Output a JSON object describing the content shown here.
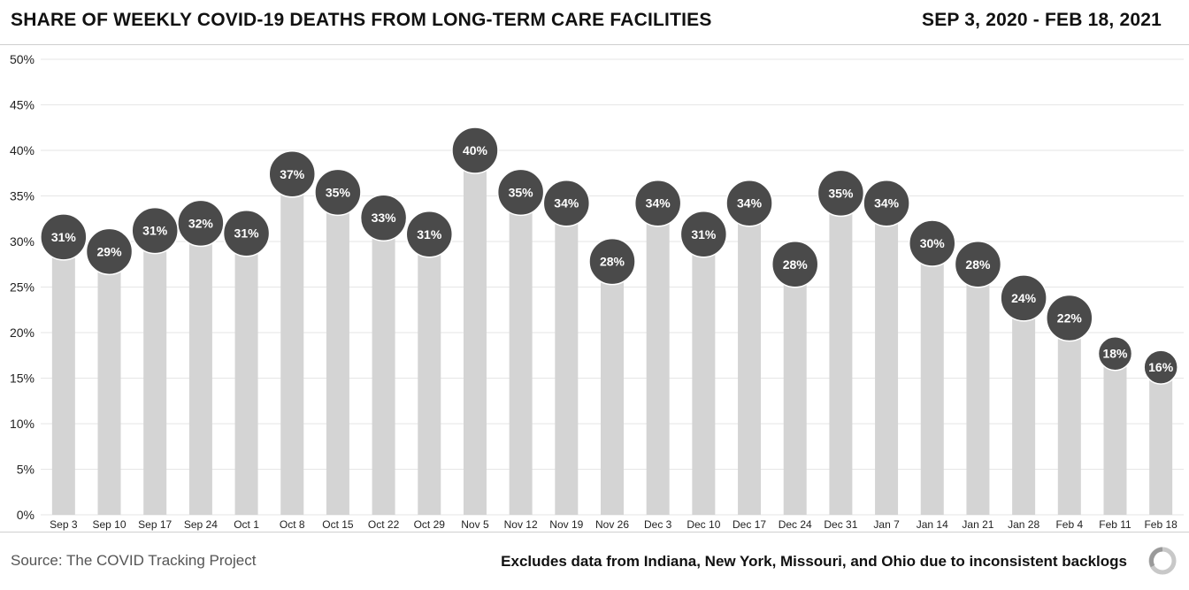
{
  "header": {
    "title": "SHARE OF WEEKLY COVID-19 DEATHS FROM LONG-TERM CARE FACILITIES",
    "date_range": "SEP 3, 2020 - FEB 18, 2021"
  },
  "footer": {
    "source": "Source: The COVID Tracking Project",
    "note": "Excludes data from Indiana, New York, Missouri, and Ohio due to inconsistent backlogs",
    "logo_icon": "covid-tracking-project-logo-icon"
  },
  "colors": {
    "bar": "#d4d4d4",
    "marker": "#4a4a4a",
    "marker_text": "#ffffff",
    "grid": "#e6e6e6"
  },
  "chart_data": {
    "type": "bar",
    "title": "SHARE OF WEEKLY COVID-19 DEATHS FROM LONG-TERM CARE FACILITIES",
    "xlabel": "",
    "ylabel": "",
    "ylim": [
      0,
      50
    ],
    "yticks": [
      0,
      5,
      10,
      15,
      20,
      25,
      30,
      35,
      40,
      45,
      50
    ],
    "ytick_labels": [
      "0%",
      "5%",
      "10%",
      "15%",
      "20%",
      "25%",
      "30%",
      "35%",
      "40%",
      "45%",
      "50%"
    ],
    "grid": true,
    "categories": [
      "Sep 3",
      "Sep 10",
      "Sep 17",
      "Sep 24",
      "Oct 1",
      "Oct 8",
      "Oct 15",
      "Oct 22",
      "Oct 29",
      "Nov 5",
      "Nov 12",
      "Nov 19",
      "Nov 26",
      "Dec 3",
      "Dec 10",
      "Dec 17",
      "Dec 24",
      "Dec 31",
      "Jan 7",
      "Jan 14",
      "Jan 21",
      "Jan 28",
      "Feb 4",
      "Feb 11",
      "Feb 18"
    ],
    "values": [
      30.5,
      28.9,
      31.2,
      32.0,
      30.9,
      37.4,
      35.4,
      32.6,
      30.8,
      40.0,
      35.4,
      34.2,
      27.8,
      34.2,
      30.8,
      34.2,
      27.5,
      35.3,
      34.2,
      29.8,
      27.5,
      23.8,
      21.6,
      17.7,
      16.2
    ],
    "data_labels": [
      "31%",
      "29%",
      "31%",
      "32%",
      "31%",
      "37%",
      "35%",
      "33%",
      "31%",
      "40%",
      "35%",
      "34%",
      "28%",
      "34%",
      "31%",
      "34%",
      "28%",
      "35%",
      "34%",
      "30%",
      "28%",
      "24%",
      "22%",
      "18%",
      "16%"
    ]
  }
}
